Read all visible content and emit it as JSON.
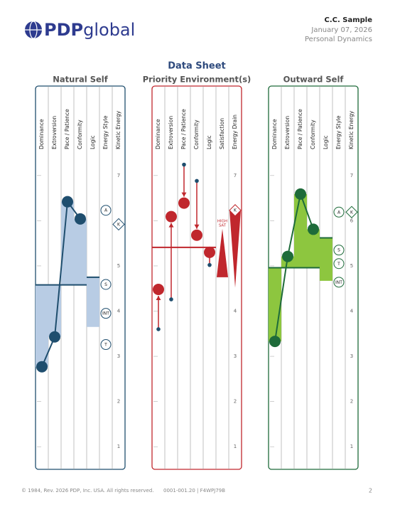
{
  "header": {
    "logo": [
      "PDP",
      "global"
    ],
    "name": "C.C. Sample",
    "date": "January 07, 2026",
    "report": "Personal Dynamics"
  },
  "title": "Data Sheet",
  "chart_data": [
    {
      "type": "pdp",
      "title": "Natural Self",
      "color": "#1f4e6e",
      "fill": "#b8cce4",
      "columns": [
        "Dominance",
        "Extroversion",
        "Pace / Patience",
        "Conformity",
        "Logic",
        "Energy Style",
        "Kinetic Energy"
      ],
      "ylim": [
        0.5,
        7.5
      ],
      "yticks": [
        1,
        2,
        3,
        4,
        5,
        6,
        7
      ],
      "values": [
        2.77,
        3.43,
        6.42,
        6.04
      ],
      "midline": 4.58,
      "logic": {
        "base": 4.75,
        "value": 3.65
      },
      "energy_style": [
        {
          "label": "A",
          "value": 6.23
        },
        {
          "label": "S",
          "value": 4.59
        },
        {
          "label": "INT",
          "value": 3.95
        },
        {
          "label": "T",
          "value": 3.26
        }
      ],
      "kinetic": {
        "label": "K",
        "value": 5.92
      }
    },
    {
      "type": "pdp-environment",
      "title": "Priority Environment(s)",
      "color": "#c0272d",
      "columns": [
        "Dominance",
        "Extroversion",
        "Pace / Patience",
        "Conformity",
        "Logic",
        "Satisfaction",
        "Energy Drain"
      ],
      "ylim": [
        0.5,
        7.5
      ],
      "yticks": [
        1,
        2,
        3,
        4,
        5,
        6,
        7
      ],
      "values": [
        4.48,
        6.09,
        6.39,
        5.68
      ],
      "from_values": [
        3.6,
        4.26,
        7.24,
        6.88
      ],
      "midline": 5.41,
      "logic": {
        "value": 5.3,
        "from": 5.02
      },
      "satisfaction": {
        "label": [
          "HIGH",
          "SAT"
        ],
        "values": [
          5.82,
          4.75
        ]
      },
      "energy_drain": {
        "label": "K",
        "values": [
          6.23,
          4.52
        ]
      }
    },
    {
      "type": "pdp",
      "title": "Outward Self",
      "color": "#1e6b3a",
      "fill": "#8dc63f",
      "columns": [
        "Dominance",
        "Extroversion",
        "Pace / Patience",
        "Conformity",
        "Logic",
        "Energy Style",
        "Kinetic Energy"
      ],
      "ylim": [
        0.5,
        7.5
      ],
      "yticks": [
        1,
        2,
        3,
        4,
        5,
        6,
        7
      ],
      "values": [
        3.33,
        5.21,
        6.59,
        5.81
      ],
      "midline": 4.96,
      "logic": {
        "base": 5.62,
        "value": 4.67
      },
      "energy_style": [
        {
          "label": "A",
          "value": 6.19
        },
        {
          "label": "S",
          "value": 5.35
        },
        {
          "label": "T",
          "value": 5.05
        },
        {
          "label": "INT",
          "value": 4.64
        }
      ],
      "kinetic": {
        "label": "K",
        "value": 6.19
      }
    }
  ],
  "footer": {
    "copyright": "© 1984, Rev. 2026 PDP, Inc. USA. All rights reserved.",
    "code": "0001-001.20 | F4WPJ79B",
    "page": "2"
  }
}
